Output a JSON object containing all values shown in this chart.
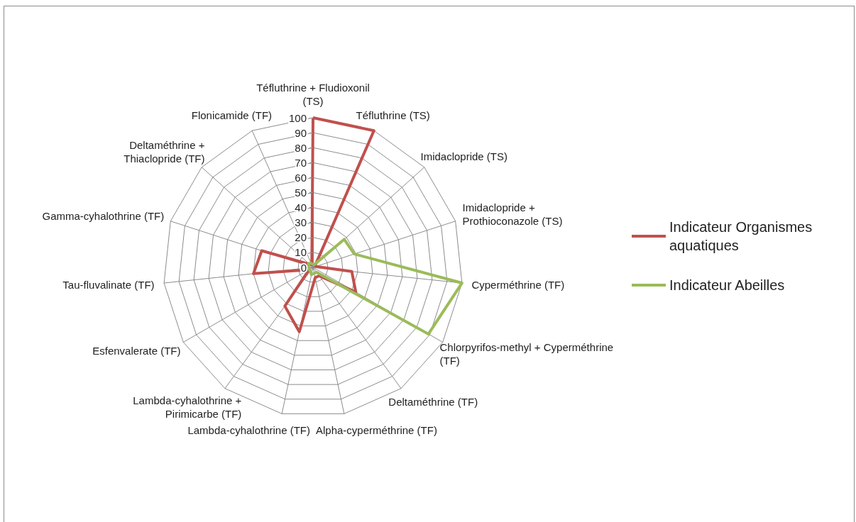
{
  "chart_data": {
    "type": "radar",
    "categories": [
      "Téfluthrine + Fludioxonil (TS)",
      "Téfluthrine (TS)",
      "Imidaclopride (TS)",
      "Imidaclopride + Prothioconazole (TS)",
      "Cyperméthrine (TF)",
      "Chlorpyrifos-methyl + Cyperméthrine (TF)",
      "Deltaméthrine (TF)",
      "Alpha-cyperméthrine (TF)",
      "Lambda-cyhalothrine (TF)",
      "Lambda-cyhalothrine + Pirimicarbe (TF)",
      "Esfenvalerate (TF)",
      "Tau-fluvalinate (TF)",
      "Gamma-cyhalothrine (TF)",
      "Deltaméthrine + Thiaclopride (TF)",
      "Flonicamide (TF)"
    ],
    "series": [
      {
        "name": "Indicateur Organismes aquatiques",
        "color": "#c0504d",
        "values": [
          100,
          100,
          2,
          2,
          26,
          33,
          7,
          7,
          44,
          32,
          3,
          40,
          36,
          3,
          2
        ]
      },
      {
        "name": "Indicateur Abeilles",
        "color": "#9bbb59",
        "values": [
          2,
          2,
          28,
          29,
          100,
          89,
          4,
          4,
          5,
          3,
          3,
          3,
          3,
          4,
          3
        ]
      }
    ],
    "ylim": [
      0,
      100
    ],
    "yticks": [
      0,
      10,
      20,
      30,
      40,
      50,
      60,
      70,
      80,
      90,
      100
    ],
    "grid": true,
    "legend": "right"
  }
}
